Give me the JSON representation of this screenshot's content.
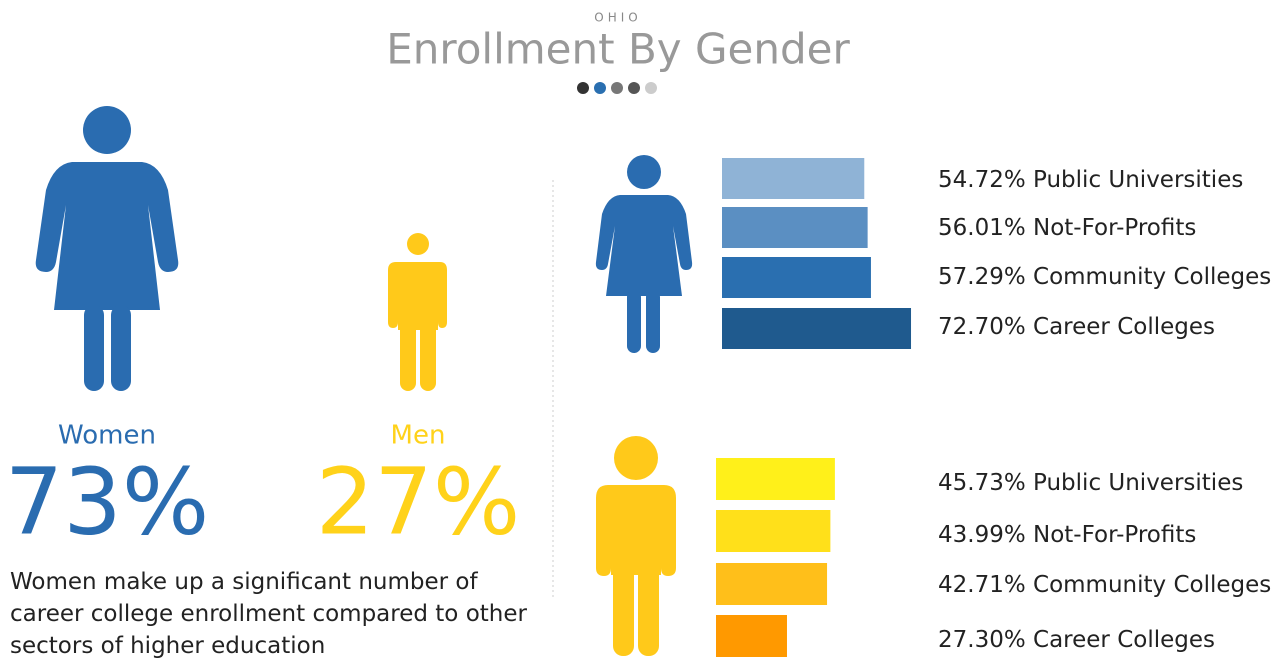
{
  "header": {
    "eyebrow": "OHIO",
    "title": "Enrollment By Gender"
  },
  "summary": [
    {
      "label": "Women",
      "value": "73%",
      "color": "#2a6cb0"
    },
    {
      "label": "Men",
      "value": "27%",
      "color": "#ffd21a"
    }
  ],
  "note": "Women make up a significant number of career college enrollment compared to other sectors of higher education",
  "chart_data": [
    {
      "type": "bar",
      "orientation": "horizontal",
      "categories": [
        "Public Universities",
        "Not-For-Profits",
        "Community Colleges",
        "Career Colleges"
      ],
      "values": [
        54.72,
        56.01,
        57.29,
        72.7
      ],
      "value_labels": [
        "54.72%",
        "56.01%",
        "57.29%",
        "72.70%"
      ],
      "colors": [
        "#8fb3d6",
        "#5b8fc2",
        "#2a6fb0",
        "#1f5a8e"
      ]
    },
    {
      "type": "bar",
      "orientation": "horizontal",
      "categories": [
        "Public Universities",
        "Not-For-Profits",
        "Community Colleges",
        "Career Colleges"
      ],
      "values": [
        45.73,
        43.99,
        42.71,
        27.3
      ],
      "value_labels": [
        "45.73%",
        "43.99%",
        "42.71%",
        "27.30%"
      ],
      "colors": [
        "#fff01a",
        "#ffe01a",
        "#ffbf1a",
        "#ff9900"
      ]
    }
  ]
}
